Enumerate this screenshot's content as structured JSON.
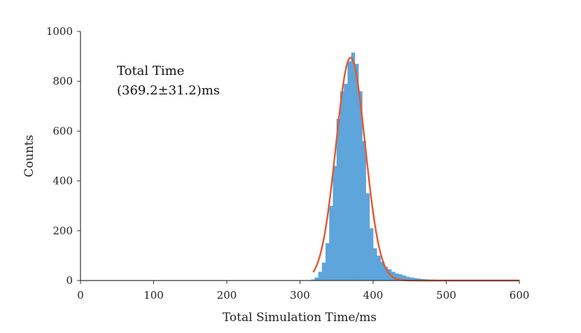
{
  "chart_data": {
    "type": "bar",
    "xlabel": "Total Simulation Time/ms",
    "ylabel": "Counts",
    "xlim": [
      0,
      600
    ],
    "ylim": [
      0,
      1000
    ],
    "xticks": [
      0,
      100,
      200,
      300,
      400,
      500,
      600
    ],
    "yticks": [
      0,
      200,
      400,
      600,
      800,
      1000
    ],
    "grid": false,
    "annotation": {
      "line1": "Total Time",
      "line2": "(369.2±31.2)ms"
    },
    "histogram": {
      "bin_width": 5,
      "bins": [
        {
          "x": 315,
          "count": 4
        },
        {
          "x": 320,
          "count": 12
        },
        {
          "x": 325,
          "count": 35
        },
        {
          "x": 330,
          "count": 72
        },
        {
          "x": 335,
          "count": 150
        },
        {
          "x": 340,
          "count": 300
        },
        {
          "x": 345,
          "count": 460
        },
        {
          "x": 350,
          "count": 650
        },
        {
          "x": 355,
          "count": 760
        },
        {
          "x": 360,
          "count": 790
        },
        {
          "x": 365,
          "count": 880
        },
        {
          "x": 370,
          "count": 915
        },
        {
          "x": 375,
          "count": 870
        },
        {
          "x": 380,
          "count": 760
        },
        {
          "x": 385,
          "count": 560
        },
        {
          "x": 390,
          "count": 350
        },
        {
          "x": 395,
          "count": 210
        },
        {
          "x": 400,
          "count": 130
        },
        {
          "x": 405,
          "count": 100
        },
        {
          "x": 410,
          "count": 75
        },
        {
          "x": 415,
          "count": 55
        },
        {
          "x": 420,
          "count": 45
        },
        {
          "x": 425,
          "count": 35
        },
        {
          "x": 430,
          "count": 28
        },
        {
          "x": 435,
          "count": 25
        },
        {
          "x": 440,
          "count": 20
        },
        {
          "x": 445,
          "count": 15
        },
        {
          "x": 450,
          "count": 12
        },
        {
          "x": 455,
          "count": 10
        },
        {
          "x": 460,
          "count": 8
        },
        {
          "x": 465,
          "count": 6
        },
        {
          "x": 470,
          "count": 5
        },
        {
          "x": 475,
          "count": 4
        },
        {
          "x": 480,
          "count": 4
        },
        {
          "x": 485,
          "count": 3
        },
        {
          "x": 490,
          "count": 3
        },
        {
          "x": 495,
          "count": 2
        }
      ]
    },
    "fit_curve": {
      "type": "gaussian",
      "peak": 895,
      "mean": 369.2,
      "sigma": 20,
      "x_range": [
        318,
        600
      ]
    },
    "colors": {
      "bars": "#5DA5DA",
      "fit": "#E4572E",
      "axis": "#333333"
    }
  }
}
